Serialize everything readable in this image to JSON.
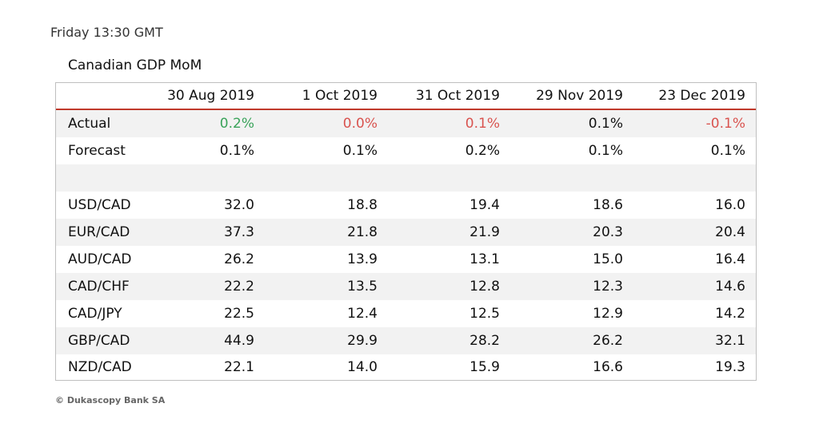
{
  "time_label": "Friday 13:30 GMT",
  "table": {
    "title": "Canadian GDP MoM",
    "columns": [
      "30 Aug 2019",
      "1 Oct 2019",
      "31 Oct 2019",
      "29 Nov 2019",
      "23 Dec 2019"
    ],
    "actual": {
      "label": "Actual",
      "values": [
        "0.2%",
        "0.0%",
        "0.1%",
        "0.1%",
        "-0.1%"
      ],
      "value_colors": [
        "#3aa35a",
        "#d9534f",
        "#d9534f",
        "#111111",
        "#d9534f"
      ]
    },
    "forecast": {
      "label": "Forecast",
      "values": [
        "0.1%",
        "0.1%",
        "0.2%",
        "0.1%",
        "0.1%"
      ]
    },
    "pairs": [
      {
        "label": "USD/CAD",
        "values": [
          "32.0",
          "18.8",
          "19.4",
          "18.6",
          "16.0"
        ]
      },
      {
        "label": "EUR/CAD",
        "values": [
          "37.3",
          "21.8",
          "21.9",
          "20.3",
          "20.4"
        ]
      },
      {
        "label": "AUD/CAD",
        "values": [
          "26.2",
          "13.9",
          "13.1",
          "15.0",
          "16.4"
        ]
      },
      {
        "label": "CAD/CHF",
        "values": [
          "22.2",
          "13.5",
          "12.8",
          "12.3",
          "14.6"
        ]
      },
      {
        "label": "CAD/JPY",
        "values": [
          "22.5",
          "12.4",
          "12.5",
          "12.9",
          "14.2"
        ]
      },
      {
        "label": "GBP/CAD",
        "values": [
          "44.9",
          "29.9",
          "28.2",
          "26.2",
          "32.1"
        ]
      },
      {
        "label": "NZD/CAD",
        "values": [
          "22.1",
          "14.0",
          "15.9",
          "16.6",
          "19.3"
        ]
      }
    ]
  },
  "copyright": "© Dukascopy Bank SA"
}
